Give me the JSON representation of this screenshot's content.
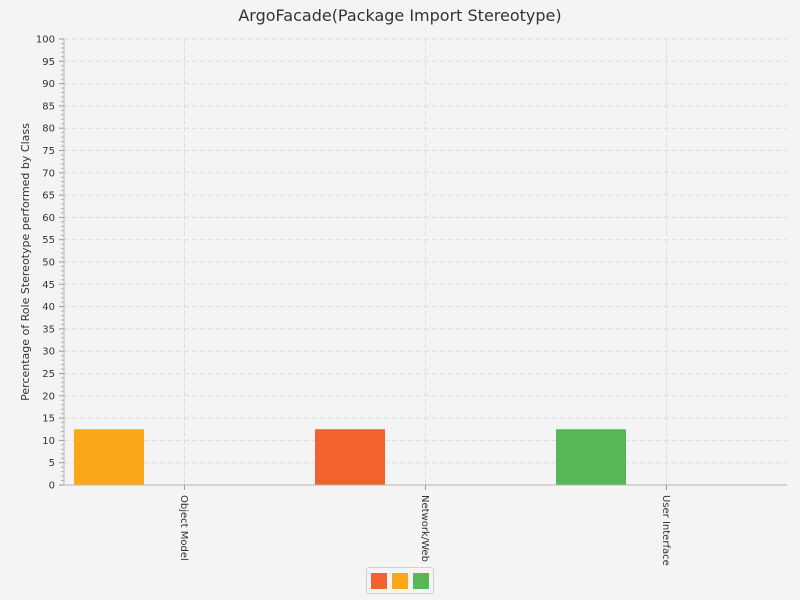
{
  "chart_data": {
    "type": "bar",
    "title": "ArgoFacade(Package Import Stereotype)",
    "xlabel": "",
    "ylabel": "Percentage of Role Stereotype performed by Class",
    "ylim": [
      0,
      100
    ],
    "ytick_step": 5,
    "categories": [
      "Object Model",
      "Network/Web",
      "User Interface"
    ],
    "series": [
      {
        "color": "#f3622d",
        "values": [
          0,
          12.5,
          0
        ]
      },
      {
        "color": "#fba71b",
        "values": [
          12.5,
          0,
          0
        ]
      },
      {
        "color": "#57b757",
        "values": [
          0,
          0,
          12.5
        ]
      }
    ],
    "grid": true,
    "legend_placement": "bottom-center"
  }
}
